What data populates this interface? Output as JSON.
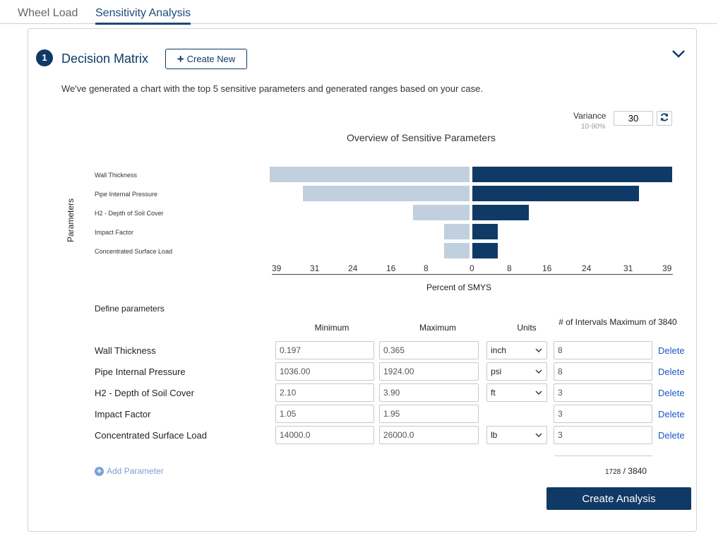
{
  "tabs": [
    {
      "label": "Wheel Load",
      "active": false
    },
    {
      "label": "Sensitivity Analysis",
      "active": true
    }
  ],
  "section": {
    "step": "1",
    "title": "Decision Matrix",
    "create_new_label": "Create New",
    "intro": "We've generated a chart with the top 5 sensitive parameters and generated ranges based on your case."
  },
  "variance": {
    "label": "Variance",
    "hint": "10-90%",
    "value": "30"
  },
  "chart_data": {
    "type": "bar",
    "orientation": "horizontal-tornado",
    "title": "Overview of Sensitive Parameters",
    "xlabel": "Percent of SMYS",
    "ylabel": "Parameters",
    "categories": [
      "Wall Thickness",
      "Pipe Internal Pressure",
      "H2 - Depth of Soil Cover",
      "Impact Factor",
      "Concentrated Surface Load"
    ],
    "series": [
      {
        "values": [
          -39,
          -32.5,
          -11,
          -5,
          -5
        ]
      },
      {
        "values": [
          39,
          32.5,
          11,
          5,
          5
        ]
      }
    ],
    "xticks": [
      "39",
      "31",
      "24",
      "16",
      "8",
      "0",
      "8",
      "16",
      "24",
      "31",
      "39"
    ],
    "xlim": [
      -39,
      39
    ],
    "colors": {
      "low": "#c0d0df",
      "high": "#0f3a66"
    }
  },
  "params": {
    "title": "Define parameters",
    "headers": {
      "minimum": "Minimum",
      "maximum": "Maximum",
      "units": "Units",
      "intervals": "# of Intervals Maximum of 3840"
    },
    "rows": [
      {
        "name": "Wall Thickness",
        "min": "0.197",
        "max": "0.365",
        "unit": "inch",
        "intervals": "8",
        "delete": "Delete"
      },
      {
        "name": "Pipe Internal Pressure",
        "min": "1036.00",
        "max": "1924.00",
        "unit": "psi",
        "intervals": "8",
        "delete": "Delete"
      },
      {
        "name": "H2 - Depth of Soil Cover",
        "min": "2.10",
        "max": "3.90",
        "unit": "ft",
        "intervals": "3",
        "delete": "Delete"
      },
      {
        "name": "Impact Factor",
        "min": "1.05",
        "max": "1.95",
        "unit": "",
        "intervals": "3",
        "delete": "Delete"
      },
      {
        "name": "Concentrated Surface Load",
        "min": "14000.0",
        "max": "26000.0",
        "unit": "lb",
        "intervals": "3",
        "delete": "Delete"
      }
    ],
    "add_label": "Add Parameter",
    "total_used": "1728",
    "total_sep": " / ",
    "total_max": "3840"
  },
  "create_analysis_label": "Create Analysis",
  "colors": {
    "primary": "#0f3a66",
    "link": "#1a56c8"
  }
}
